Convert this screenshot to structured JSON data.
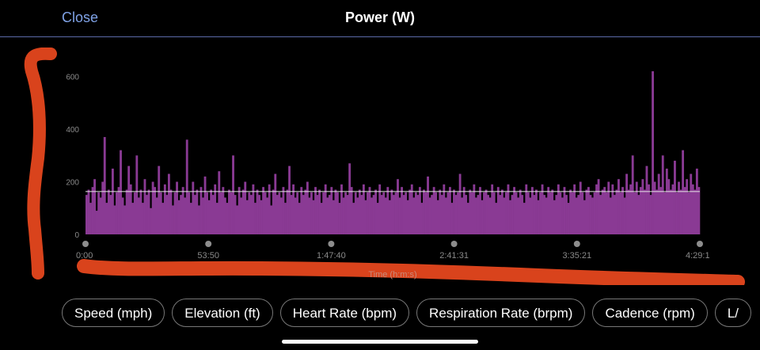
{
  "header": {
    "close_label": "Close",
    "title": "Power (W)"
  },
  "chart_data": {
    "type": "area",
    "title": "Power (W)",
    "xlabel": "Time (h:m:s)",
    "ylabel": "",
    "ylim": [
      0,
      650
    ],
    "xlim": [
      0,
      16141
    ],
    "y_ticks": [
      0,
      200,
      400,
      600
    ],
    "x_ticks": [
      "0:00",
      "53:50",
      "1:47:40",
      "2:41:31",
      "3:35:21",
      "4:29:1"
    ],
    "average_line": 163,
    "fill_color": "#8a3a94",
    "average_color": "#e8e8e8",
    "series": [
      {
        "name": "Power",
        "values": [
          150,
          170,
          120,
          180,
          210,
          90,
          160,
          140,
          200,
          370,
          120,
          170,
          150,
          250,
          110,
          160,
          180,
          320,
          140,
          110,
          170,
          260,
          190,
          120,
          160,
          300,
          140,
          170,
          120,
          210,
          150,
          170,
          100,
          200,
          180,
          140,
          260,
          160,
          120,
          190,
          150,
          230,
          170,
          110,
          160,
          200,
          130,
          150,
          180,
          140,
          360,
          160,
          120,
          200,
          150,
          170,
          110,
          180,
          140,
          220,
          160,
          130,
          170,
          150,
          190,
          120,
          240,
          160,
          180,
          140,
          120,
          170,
          160,
          300,
          150,
          110,
          180,
          140,
          170,
          200,
          130,
          160,
          150,
          190,
          120,
          170,
          150,
          130,
          180,
          160,
          140,
          190,
          110,
          170,
          230,
          150,
          160,
          140,
          180,
          120,
          170,
          260,
          150,
          190,
          140,
          160,
          120,
          180,
          150,
          170,
          200,
          140,
          160,
          130,
          180,
          150,
          170,
          120,
          160,
          190,
          140,
          150,
          180,
          130,
          170,
          160,
          120,
          190,
          140,
          160,
          150,
          270,
          180,
          120,
          160,
          140,
          170,
          150,
          190,
          130,
          160,
          180,
          140,
          150,
          170,
          120,
          190,
          150,
          160,
          140,
          180,
          130,
          170,
          150,
          160,
          210,
          140,
          180,
          150,
          160,
          130,
          170,
          190,
          140,
          160,
          150,
          180,
          120,
          170,
          160,
          220,
          140,
          150,
          180,
          160,
          130,
          170,
          150,
          190,
          140,
          160,
          180,
          120,
          170,
          150,
          160,
          230,
          140,
          180,
          150,
          120,
          170,
          160,
          190,
          140,
          150,
          180,
          130,
          160,
          170,
          150,
          140,
          190,
          160,
          120,
          180,
          150,
          170,
          140,
          160,
          190,
          130,
          150,
          180,
          160,
          140,
          170,
          150,
          120,
          190,
          160,
          140,
          180,
          150,
          170,
          130,
          160,
          190,
          150,
          140,
          180,
          160,
          170,
          130,
          150,
          190,
          160,
          140,
          180,
          150,
          120,
          170,
          160,
          190,
          140,
          150,
          200,
          160,
          130,
          170,
          180,
          150,
          140,
          160,
          190,
          210,
          150,
          170,
          180,
          160,
          200,
          140,
          190,
          150,
          170,
          210,
          160,
          180,
          140,
          230,
          170,
          190,
          300,
          160,
          200,
          150,
          180,
          210,
          170,
          260,
          190,
          150,
          620,
          200,
          170,
          230,
          180,
          300,
          160,
          250,
          210,
          170,
          190,
          280,
          160,
          200,
          170,
          320,
          180,
          210,
          160,
          230,
          190,
          170,
          250,
          180
        ]
      }
    ]
  }
}
